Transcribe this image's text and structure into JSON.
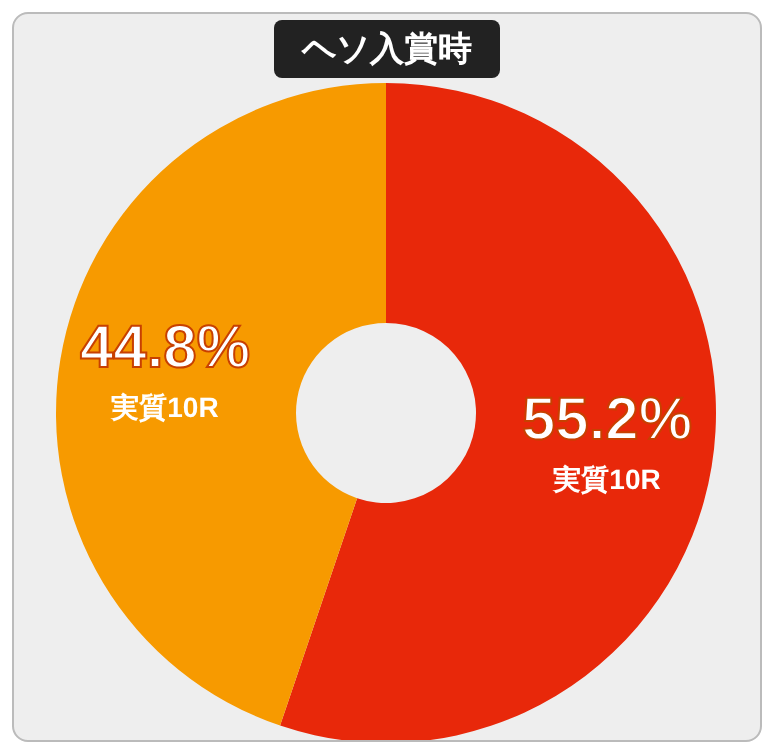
{
  "chart_data": {
    "type": "donut",
    "title": "ヘソ入賞時",
    "categories": [
      "実質10R",
      "実質10R"
    ],
    "values": [
      55.2,
      44.8
    ],
    "colors": [
      "#e8280a",
      "#f79a00"
    ],
    "value_labels": [
      "55.2%",
      "44.8%"
    ]
  }
}
